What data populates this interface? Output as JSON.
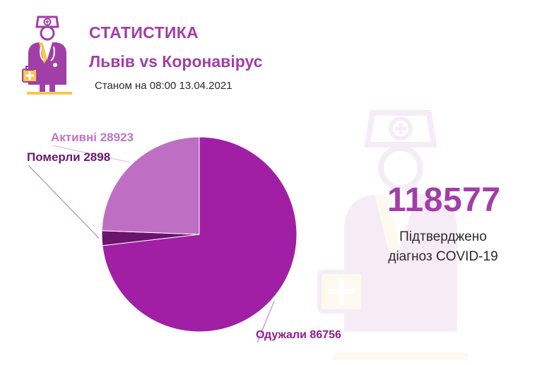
{
  "header": {
    "title": "СТАТИСТИКА",
    "subtitle": "Львів vs Коронавірус",
    "date": "Станом на 08:00 13.04.2021"
  },
  "summary": {
    "total": "118577",
    "caption_line1": "Підтверджено",
    "caption_line2": "діагноз COVID-19"
  },
  "colors": {
    "accent": "#a23ea7",
    "recovered": "#a11fa5",
    "active": "#bf6fc3",
    "died": "#6b146d",
    "active_label": "#c274c6",
    "died_label": "#6a1a6c",
    "recovered_label": "#8d1c93"
  },
  "icons": {
    "logo": "doctor-icon",
    "watermark": "doctor-watermark-icon"
  },
  "chart_data": {
    "type": "pie",
    "title": "",
    "categories": [
      "Одужали",
      "Померли",
      "Активні"
    ],
    "values": [
      86756,
      2898,
      28923
    ],
    "labels": [
      "Одужали 86756",
      "Померли 2898",
      "Активні 28923"
    ],
    "start_angle_deg": 0,
    "direction": "clockwise"
  }
}
